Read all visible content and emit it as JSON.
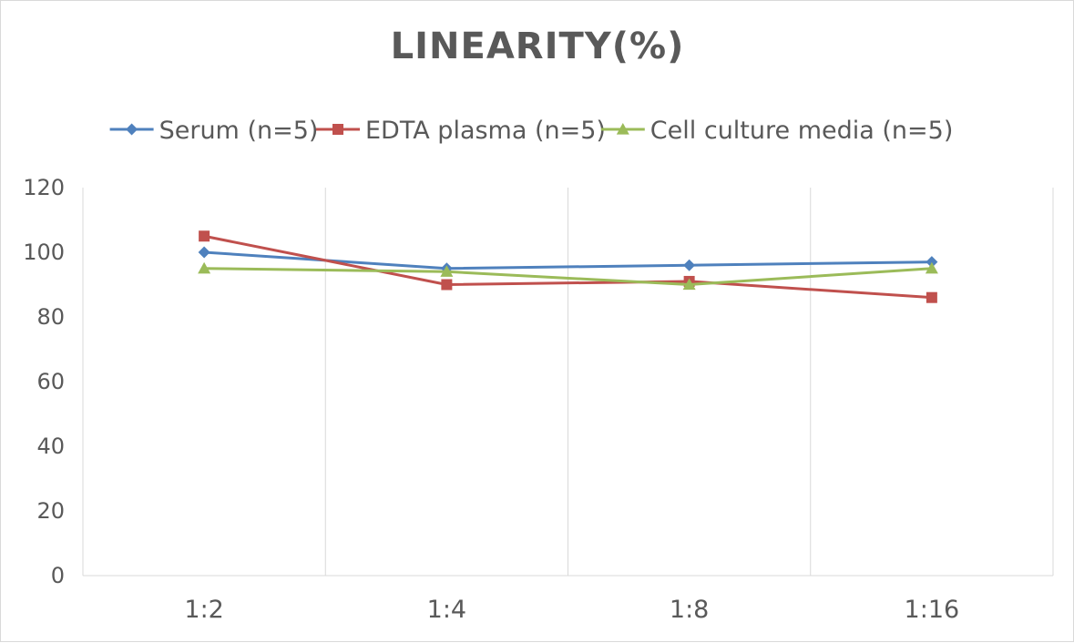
{
  "chart_data": {
    "type": "line",
    "title": "LINEARITY(%)",
    "xlabel": "",
    "ylabel": "",
    "categories": [
      "1:2",
      "1:4",
      "1:8",
      "1:16"
    ],
    "ylim": [
      0,
      120
    ],
    "yticks": [
      0,
      20,
      40,
      60,
      80,
      100,
      120
    ],
    "grid": "vertical",
    "legend": "top",
    "series": [
      {
        "name": "Serum (n=5)",
        "values": [
          100,
          95,
          96,
          97
        ],
        "color": "#4f81bd",
        "marker": "diamond"
      },
      {
        "name": "EDTA plasma (n=5)",
        "values": [
          105,
          90,
          91,
          86
        ],
        "color": "#c0504d",
        "marker": "square"
      },
      {
        "name": "Cell culture media (n=5)",
        "values": [
          95,
          94,
          90,
          95
        ],
        "color": "#9bbb59",
        "marker": "triangle"
      }
    ]
  }
}
